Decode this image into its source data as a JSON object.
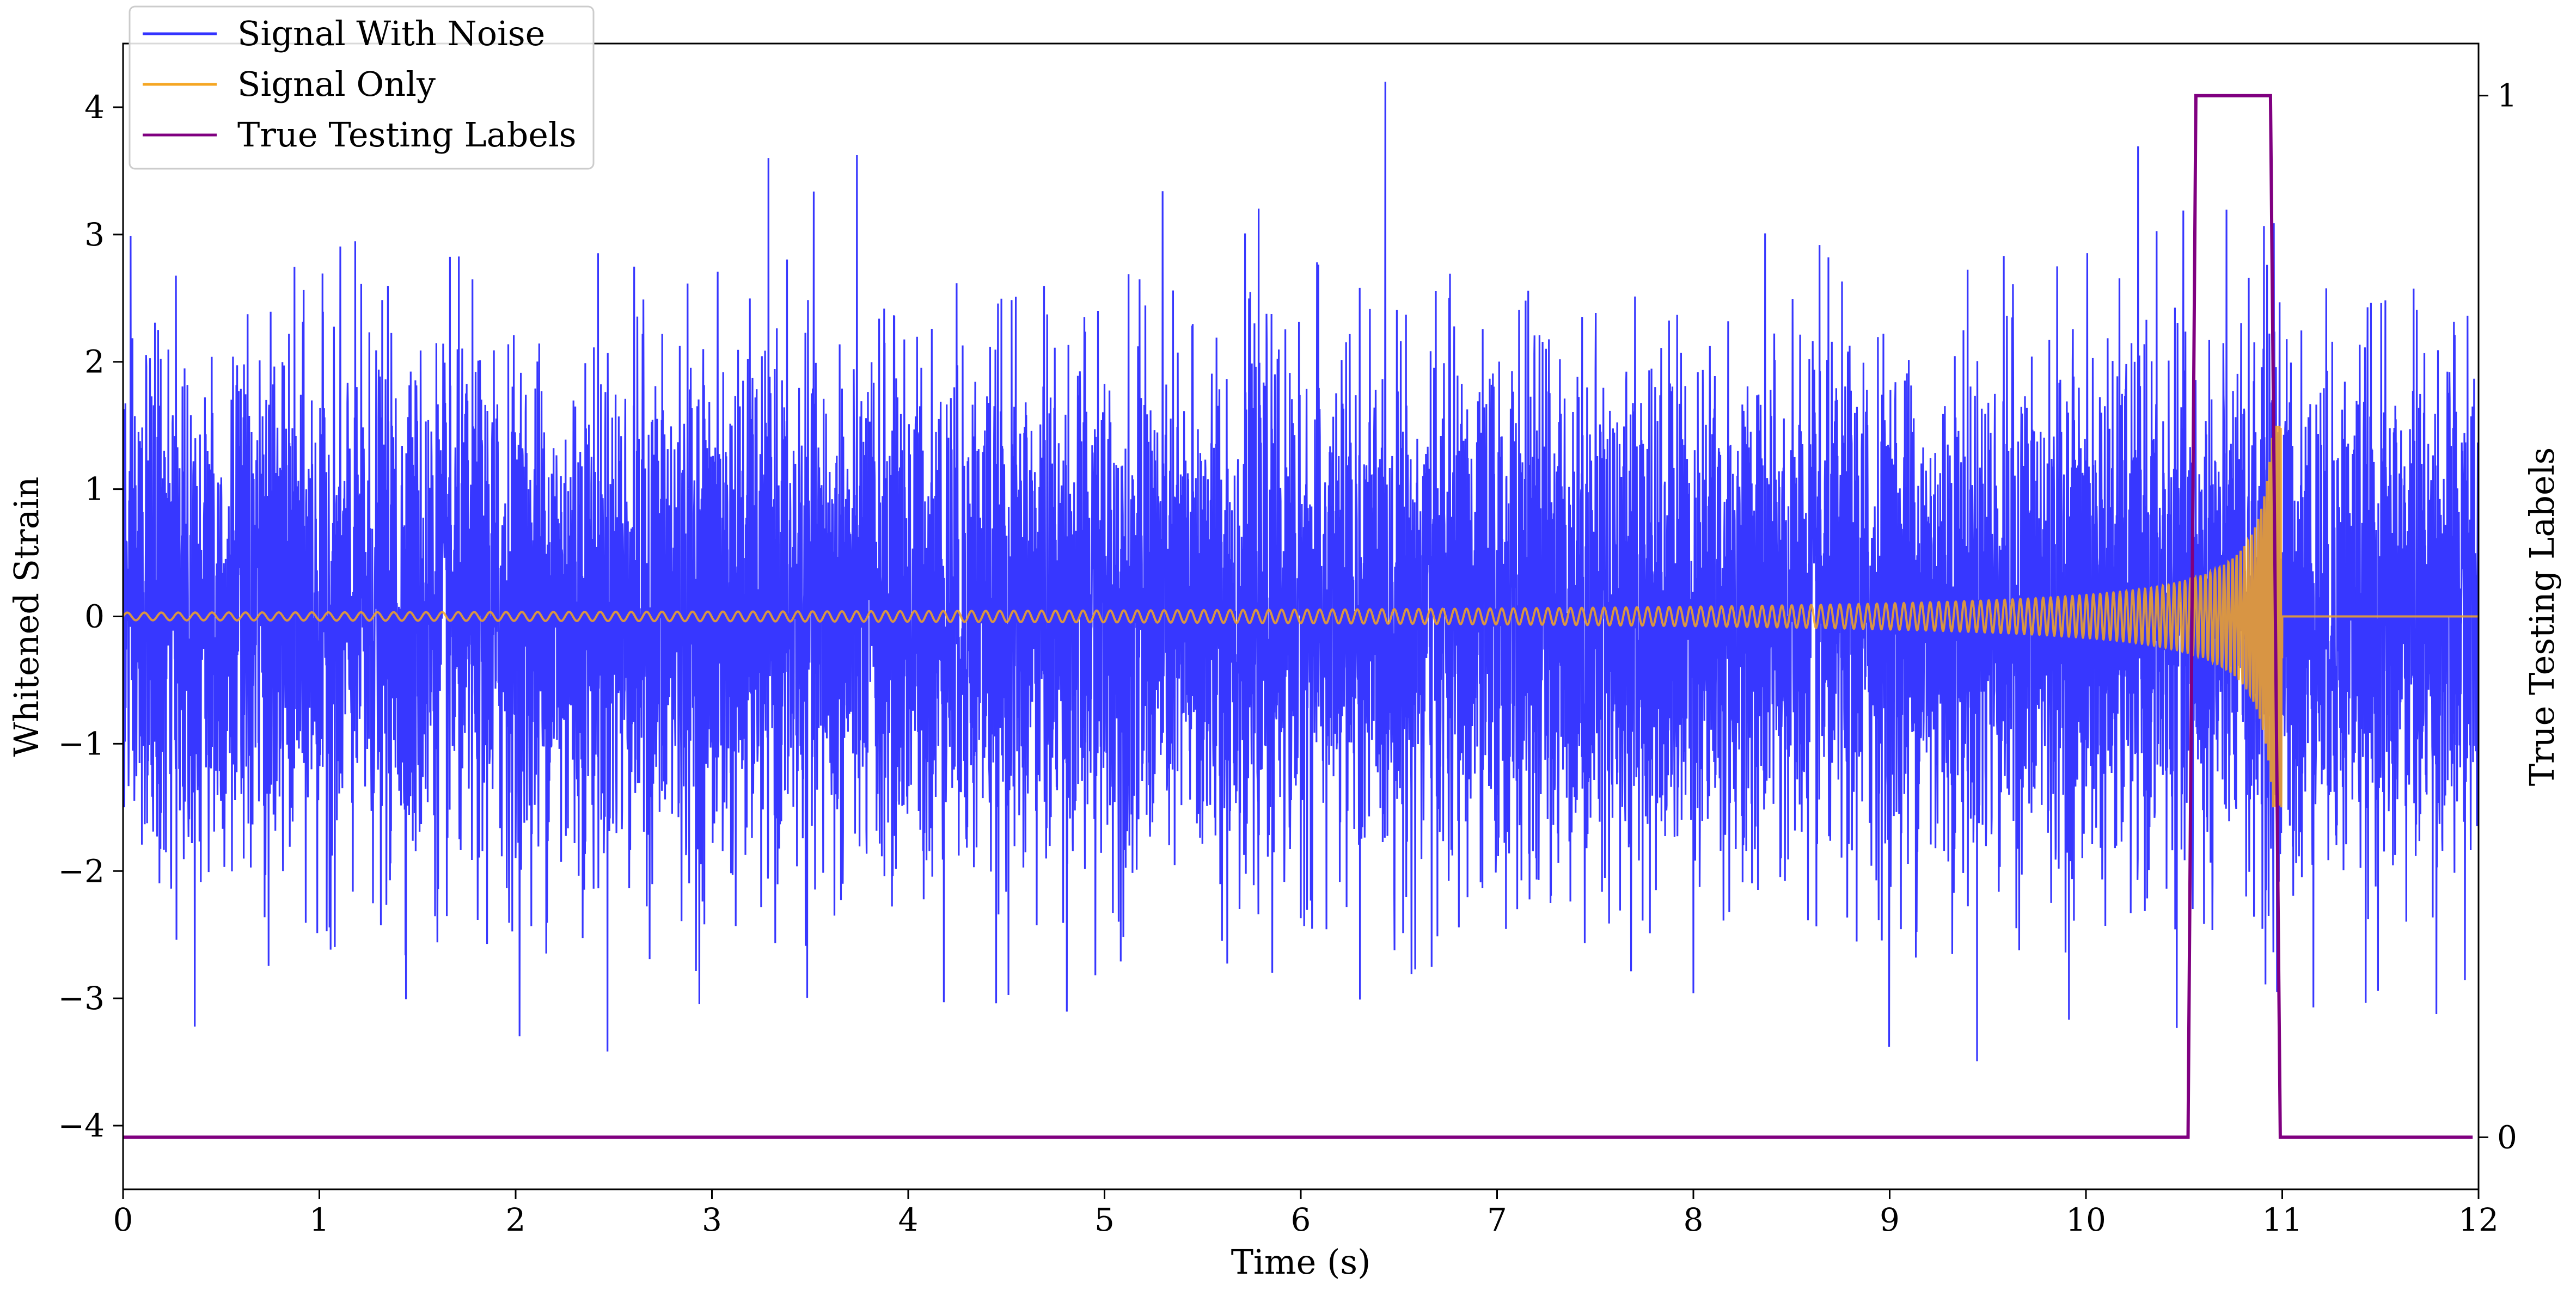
{
  "chart_data": {
    "type": "line",
    "title": "",
    "xlabel": "Time (s)",
    "ylabel": "Whitened Strain",
    "y2label": "True Testing Labels",
    "xlim": [
      0,
      12
    ],
    "ylim": [
      -4.5,
      4.5
    ],
    "y2lim": [
      -0.05,
      1.05
    ],
    "xticks": [
      0,
      1,
      2,
      3,
      4,
      5,
      6,
      7,
      8,
      9,
      10,
      11,
      12
    ],
    "xtick_labels": [
      "0",
      "1",
      "2",
      "3",
      "4",
      "5",
      "6",
      "7",
      "8",
      "9",
      "10",
      "11",
      "12"
    ],
    "yticks": [
      -4,
      -3,
      -2,
      -1,
      0,
      1,
      2,
      3,
      4
    ],
    "ytick_labels": [
      "−4",
      "−3",
      "−2",
      "−1",
      "0",
      "1",
      "2",
      "3",
      "4"
    ],
    "y2ticks": [
      0,
      1
    ],
    "y2tick_labels": [
      "0",
      "1"
    ],
    "grid": false,
    "legend_position": "top-left",
    "series": [
      {
        "name": "Signal With Noise",
        "color": "#3333ff",
        "axis": "left",
        "description_stats": {
          "mean": 0,
          "std": 1,
          "min": -3.85,
          "max": 4.2
        }
      },
      {
        "name": "Signal Only",
        "color": "#f5a623",
        "axis": "left",
        "description_stats": {
          "merger_time": 11.0,
          "peak_amplitude": 1.5,
          "start_amplitude": 0.03
        }
      },
      {
        "name": "True Testing Labels",
        "color": "#800080",
        "axis": "right",
        "x": [
          0,
          10.52,
          10.56,
          10.94,
          10.99,
          11.97
        ],
        "y": [
          0,
          0,
          1,
          1,
          0,
          0
        ]
      }
    ]
  }
}
